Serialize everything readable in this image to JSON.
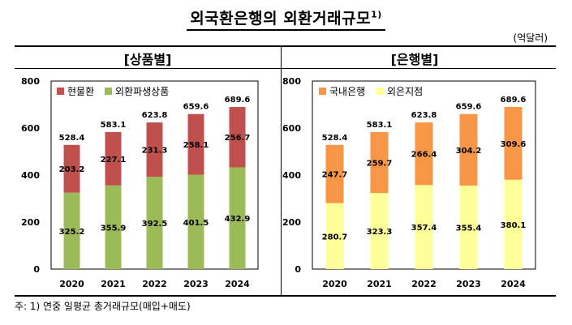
{
  "title": "외국환은행의 외환거래규모",
  "title_footnote": "1)",
  "unit": "(억달러)",
  "footnote": "주:  1)  연중  일평균  총거래규모(매입+매도)",
  "chart_data": [
    {
      "type": "bar",
      "stacked": true,
      "title": "[상품별]",
      "categories": [
        "2020",
        "2021",
        "2022",
        "2023",
        "2024"
      ],
      "ylim": [
        0,
        800
      ],
      "yticks": [
        0,
        200,
        400,
        600,
        800
      ],
      "series": [
        {
          "name": "외환파생상품",
          "color": "#9bbb59",
          "values": [
            325.2,
            355.9,
            392.5,
            401.5,
            432.9
          ],
          "labels": [
            "325.2",
            "355.9",
            "392.5",
            "401.5",
            "432.9"
          ]
        },
        {
          "name": "현물환",
          "color": "#c0504d",
          "values": [
            203.2,
            227.1,
            231.3,
            258.1,
            256.7
          ],
          "labels": [
            "203.2",
            "227.1",
            "231.3",
            "258.1",
            "256.7"
          ]
        }
      ],
      "totals": [
        "528.4",
        "583.1",
        "623.8",
        "659.6",
        "689.6"
      ],
      "total_values": [
        528.4,
        583.1,
        623.8,
        659.6,
        689.6
      ],
      "legend": "top-left",
      "grid": false
    },
    {
      "type": "bar",
      "stacked": true,
      "title": "[은행별]",
      "categories": [
        "2020",
        "2021",
        "2022",
        "2023",
        "2024"
      ],
      "ylim": [
        0,
        800
      ],
      "yticks": [
        0,
        200,
        400,
        600,
        800
      ],
      "series": [
        {
          "name": "외은지점",
          "color": "#ffff99",
          "values": [
            280.7,
            323.3,
            357.4,
            355.4,
            380.1
          ],
          "labels": [
            "280.7",
            "323.3",
            "357.4",
            "355.4",
            "380.1"
          ]
        },
        {
          "name": "국내은행",
          "color": "#f79646",
          "values": [
            247.7,
            259.7,
            266.4,
            304.2,
            309.6
          ],
          "labels": [
            "247.7",
            "259.7",
            "266.4",
            "304.2",
            "309.6"
          ]
        }
      ],
      "totals": [
        "528.4",
        "583.1",
        "623.8",
        "659.6",
        "689.6"
      ],
      "total_values": [
        528.4,
        583.1,
        623.8,
        659.6,
        689.6
      ],
      "legend": "top-left",
      "grid": false
    }
  ]
}
